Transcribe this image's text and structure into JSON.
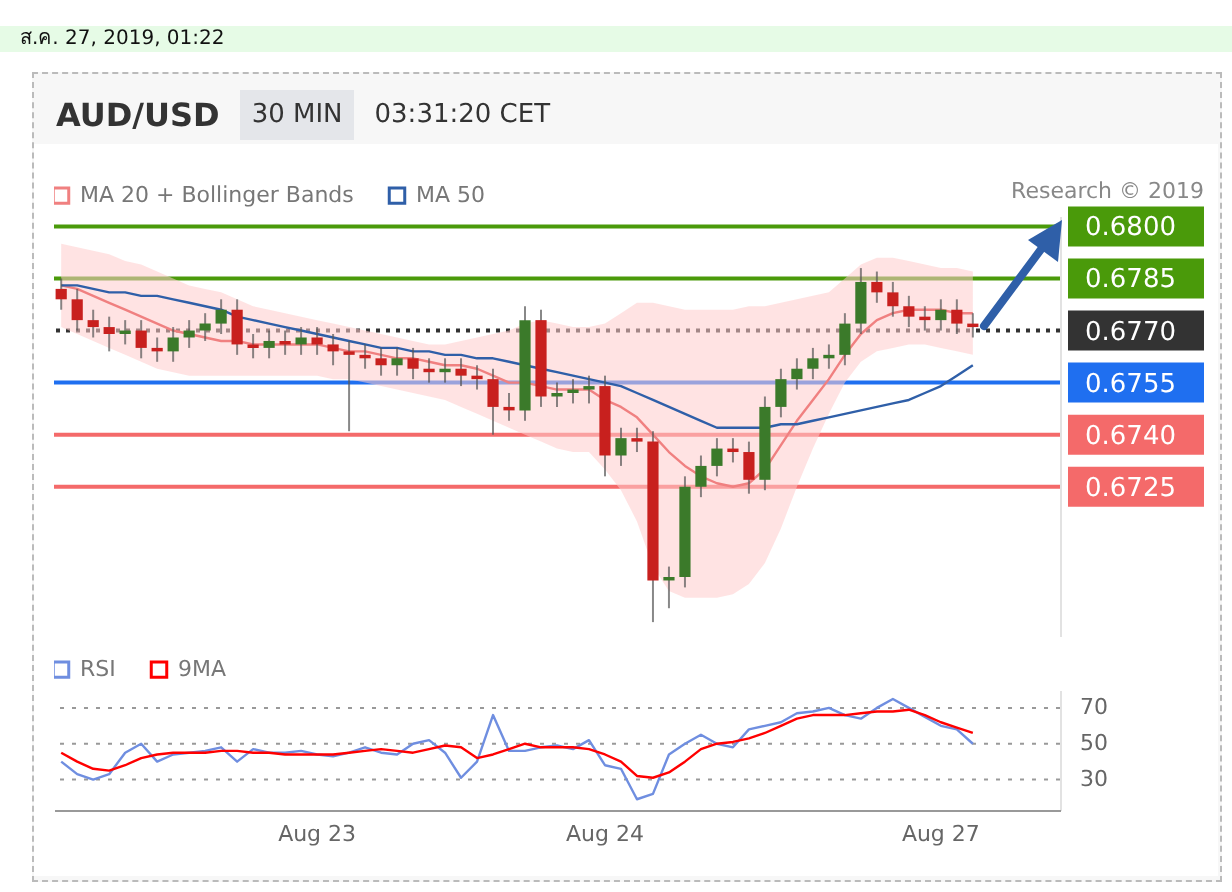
{
  "chart_data": [
    {
      "type": "candlestick",
      "title": "AUD/USD",
      "subtitle": "30 MIN",
      "annotations": [
        "03:31:20 CET",
        "ส.ค. 27, 2019, 01:22",
        "Research © 2019"
      ],
      "legend": "top left",
      "tick_labels": "y",
      "ylim": [
        0.6682,
        0.6803
      ],
      "yticks": [
        0.6725,
        {
          "value": 0.674,
          "label": "0.6740"
        },
        0.6755,
        {
          "value": 0.677,
          "label": "0.6770"
        },
        0.6785,
        {
          "value": 0.68,
          "label": "0.6800"
        }
      ],
      "categories": [
        null,
        null,
        null,
        null,
        null,
        null,
        null,
        null,
        null,
        null,
        null,
        null,
        null,
        null,
        null,
        null,
        null,
        null,
        null,
        null,
        null,
        null,
        null,
        null,
        null,
        null,
        null,
        null,
        null,
        null,
        null,
        null,
        null,
        null,
        null,
        null,
        null,
        null,
        null,
        null,
        null,
        null,
        null,
        null,
        null,
        null,
        null,
        null,
        null,
        null,
        null,
        null,
        null,
        null,
        null,
        null,
        null,
        null,
        null,
        null,
        null,
        null,
        null
      ],
      "ohlc": [
        [
          0.6782,
          0.6785,
          0.6776,
          0.6779
        ],
        [
          0.6779,
          0.6782,
          0.677,
          0.6773
        ],
        [
          0.6773,
          0.6776,
          0.6768,
          0.6771
        ],
        [
          0.6771,
          0.6774,
          0.6764,
          0.6769
        ],
        [
          0.6769,
          0.6773,
          0.6766,
          0.677
        ],
        [
          0.677,
          0.6773,
          0.6762,
          0.6765
        ],
        [
          0.6765,
          0.6768,
          0.6761,
          0.6764
        ],
        [
          0.6764,
          0.6771,
          0.6761,
          0.6768
        ],
        [
          0.6768,
          0.6773,
          0.6765,
          0.677
        ],
        [
          0.677,
          0.6775,
          0.6767,
          0.6772
        ],
        [
          0.6772,
          0.6779,
          0.6769,
          0.6776
        ],
        [
          0.6776,
          0.6779,
          0.6763,
          0.6766
        ],
        [
          0.6766,
          0.6769,
          0.6762,
          0.6765
        ],
        [
          0.6765,
          0.677,
          0.6762,
          0.6767
        ],
        [
          0.6767,
          0.677,
          0.6763,
          0.6766
        ],
        [
          0.6766,
          0.6771,
          0.6763,
          0.6768
        ],
        [
          0.6768,
          0.6771,
          0.6763,
          0.6766
        ],
        [
          0.6766,
          0.6769,
          0.676,
          0.6764
        ],
        [
          0.6764,
          0.6767,
          0.6741,
          0.6763
        ],
        [
          0.6763,
          0.6766,
          0.6759,
          0.6762
        ],
        [
          0.6762,
          0.6765,
          0.6757,
          0.676
        ],
        [
          0.676,
          0.6765,
          0.6757,
          0.6762
        ],
        [
          0.6762,
          0.6765,
          0.6756,
          0.6759
        ],
        [
          0.6759,
          0.6762,
          0.6755,
          0.6758
        ],
        [
          0.6758,
          0.6762,
          0.6755,
          0.6759
        ],
        [
          0.6759,
          0.6762,
          0.6754,
          0.6757
        ],
        [
          0.6757,
          0.676,
          0.6753,
          0.6756
        ],
        [
          0.6756,
          0.6759,
          0.674,
          0.6748
        ],
        [
          0.6748,
          0.6752,
          0.6744,
          0.6747
        ],
        [
          0.6747,
          0.6777,
          0.6744,
          0.6773
        ],
        [
          0.6773,
          0.6776,
          0.6748,
          0.6751
        ],
        [
          0.6751,
          0.6755,
          0.6748,
          0.6752
        ],
        [
          0.6752,
          0.6756,
          0.6749,
          0.6753
        ],
        [
          0.6753,
          0.6757,
          0.6749,
          0.6754
        ],
        [
          0.6754,
          0.6757,
          0.6728,
          0.6734
        ],
        [
          0.6734,
          0.6742,
          0.6731,
          0.6739
        ],
        [
          0.6739,
          0.6742,
          0.6735,
          0.6738
        ],
        [
          0.6738,
          0.6741,
          0.6686,
          0.6698
        ],
        [
          0.6698,
          0.6702,
          0.669,
          0.6699
        ],
        [
          0.6699,
          0.6728,
          0.6696,
          0.6725
        ],
        [
          0.6725,
          0.6734,
          0.6722,
          0.6731
        ],
        [
          0.6731,
          0.6739,
          0.6728,
          0.6736
        ],
        [
          0.6736,
          0.6739,
          0.6732,
          0.6735
        ],
        [
          0.6735,
          0.6738,
          0.6723,
          0.6727
        ],
        [
          0.6727,
          0.6751,
          0.6724,
          0.6748
        ],
        [
          0.6748,
          0.6759,
          0.6745,
          0.6756
        ],
        [
          0.6756,
          0.6762,
          0.6753,
          0.6759
        ],
        [
          0.6759,
          0.6765,
          0.6756,
          0.6762
        ],
        [
          0.6762,
          0.6766,
          0.6759,
          0.6763
        ],
        [
          0.6763,
          0.6775,
          0.676,
          0.6772
        ],
        [
          0.6772,
          0.6788,
          0.6769,
          0.6784
        ],
        [
          0.6784,
          0.6787,
          0.6778,
          0.6781
        ],
        [
          0.6781,
          0.6784,
          0.6774,
          0.6777
        ],
        [
          0.6777,
          0.678,
          0.6771,
          0.6774
        ],
        [
          0.6774,
          0.6777,
          0.677,
          0.6773
        ],
        [
          0.6773,
          0.6779,
          0.677,
          0.6776
        ],
        [
          0.6776,
          0.6779,
          0.6769,
          0.6772
        ],
        [
          0.6772,
          0.6775,
          0.6768,
          0.6771
        ],
        null,
        null,
        null,
        null,
        null
      ],
      "series": [
        {
          "name": "MA 20 + Bollinger Bands",
          "type": "line",
          "color": "#f08080",
          "values": [
            0.6783,
            0.6782,
            0.678,
            0.6778,
            0.6776,
            0.6774,
            0.6772,
            0.677,
            0.6769,
            0.6768,
            0.6767,
            0.6767,
            0.6766,
            0.6766,
            0.6766,
            0.6766,
            0.6766,
            0.6765,
            0.6764,
            0.6764,
            0.6763,
            0.6762,
            0.6762,
            0.6761,
            0.676,
            0.676,
            0.6759,
            0.6757,
            0.6755,
            0.6755,
            0.6754,
            0.6753,
            0.6753,
            0.6753,
            0.675,
            0.6748,
            0.6745,
            0.674,
            0.6735,
            0.6731,
            0.6728,
            0.6726,
            0.6725,
            0.6726,
            0.673,
            0.6737,
            0.6744,
            0.675,
            0.6756,
            0.6763,
            0.6769,
            0.6773,
            0.6775,
            0.6776,
            0.6776,
            0.6776,
            0.6775,
            0.6775,
            null,
            null,
            null,
            null,
            null
          ],
          "upper": [
            0.6795,
            0.6794,
            0.6793,
            0.6792,
            0.679,
            0.6789,
            0.6787,
            0.6785,
            0.6783,
            0.6782,
            0.6781,
            0.6779,
            0.6777,
            0.6776,
            0.6775,
            0.6774,
            0.6773,
            0.6772,
            0.6771,
            0.677,
            0.6769,
            0.6768,
            0.6767,
            0.6766,
            0.6766,
            0.6767,
            0.6768,
            0.6769,
            0.677,
            0.6772,
            0.6773,
            0.6772,
            0.6771,
            0.6771,
            0.6772,
            0.6775,
            0.6778,
            0.6778,
            0.6777,
            0.6776,
            0.6776,
            0.6776,
            0.6776,
            0.6777,
            0.6777,
            0.6778,
            0.6779,
            0.678,
            0.6781,
            0.6785,
            0.6789,
            0.6791,
            0.6791,
            0.679,
            0.6789,
            0.6788,
            0.6788,
            0.6787,
            null,
            null,
            null,
            null,
            null
          ],
          "lower": [
            0.6771,
            0.6769,
            0.6767,
            0.6765,
            0.6763,
            0.6761,
            0.6759,
            0.6758,
            0.6757,
            0.6757,
            0.6757,
            0.6757,
            0.6757,
            0.6757,
            0.6757,
            0.6757,
            0.6757,
            0.6756,
            0.6756,
            0.6755,
            0.6754,
            0.6753,
            0.6752,
            0.6751,
            0.675,
            0.6748,
            0.6746,
            0.6744,
            0.6742,
            0.674,
            0.6738,
            0.6736,
            0.6735,
            0.6735,
            0.673,
            0.6724,
            0.6715,
            0.6702,
            0.6695,
            0.6693,
            0.6693,
            0.6693,
            0.6694,
            0.6697,
            0.6703,
            0.6713,
            0.6725,
            0.6736,
            0.6746,
            0.6755,
            0.6761,
            0.6764,
            0.6765,
            0.6766,
            0.6766,
            0.6765,
            0.6764,
            0.6763,
            null,
            null,
            null,
            null,
            null
          ]
        },
        {
          "name": "MA 50",
          "type": "line",
          "color": "#2f5fa8",
          "values": [
            0.6783,
            0.6783,
            0.6782,
            0.6781,
            0.6781,
            0.678,
            0.678,
            0.6779,
            0.6778,
            0.6777,
            0.6776,
            0.6774,
            0.6773,
            0.6772,
            0.6771,
            0.677,
            0.6769,
            0.6768,
            0.6767,
            0.6766,
            0.6765,
            0.6765,
            0.6764,
            0.6764,
            0.6763,
            0.6763,
            0.6762,
            0.6762,
            0.6761,
            0.676,
            0.6759,
            0.6758,
            0.6757,
            0.6756,
            0.6755,
            0.6754,
            0.6752,
            0.675,
            0.6748,
            0.6746,
            0.6744,
            0.6742,
            0.6742,
            0.6742,
            0.6742,
            0.6743,
            0.6743,
            0.6744,
            0.6745,
            0.6746,
            0.6747,
            0.6748,
            0.6749,
            0.675,
            0.6752,
            0.6754,
            0.6757,
            0.676,
            null,
            null,
            null,
            null,
            null
          ]
        }
      ],
      "ref_lines": [
        {
          "axis": "y",
          "value": 0.68,
          "color": "#4a9a0a"
        },
        {
          "axis": "y",
          "value": 0.6785,
          "color": "#4a9a0a"
        },
        {
          "axis": "y",
          "value": 0.677,
          "color": "#333333",
          "line_style": "dotted"
        },
        {
          "axis": "y",
          "value": 0.6755,
          "color": "#1f6ff0"
        },
        {
          "axis": "y",
          "value": 0.674,
          "color": "#f46a6a"
        },
        {
          "axis": "y",
          "value": 0.6725,
          "color": "#f46a6a"
        }
      ]
    },
    {
      "type": "line",
      "legend": "top left",
      "grid": "y",
      "line_style": "solid",
      "categories": [
        null,
        null,
        null,
        null,
        null,
        null,
        null,
        null,
        null,
        null,
        null,
        null,
        null,
        null,
        null,
        null,
        "Aug 23",
        null,
        null,
        null,
        null,
        null,
        null,
        null,
        null,
        null,
        null,
        null,
        null,
        null,
        null,
        null,
        null,
        null,
        "Aug 24",
        null,
        null,
        null,
        null,
        null,
        null,
        null,
        null,
        null,
        null,
        null,
        null,
        null,
        null,
        null,
        null,
        null,
        null,
        null,
        null,
        "Aug 27",
        null,
        null,
        null,
        null,
        null,
        null,
        null
      ],
      "series": [
        {
          "name": "RSI",
          "color": "#6f8ee0",
          "values": [
            40,
            33,
            30,
            33,
            45,
            50,
            40,
            44,
            45,
            46,
            48,
            40,
            47,
            45,
            45,
            46,
            44,
            43,
            45,
            48,
            45,
            44,
            50,
            52,
            45,
            31,
            40,
            66,
            46,
            46,
            48,
            49,
            47,
            52,
            38,
            36,
            19,
            22,
            44,
            50,
            55,
            50,
            48,
            58,
            60,
            62,
            67,
            68,
            70,
            66,
            64,
            70,
            75,
            70,
            65,
            60,
            58,
            50,
            null,
            null,
            null,
            null,
            null
          ]
        },
        {
          "name": "9MA",
          "color": "#ff0000",
          "values": [
            45,
            40,
            36,
            35,
            38,
            42,
            44,
            45,
            45,
            45,
            46,
            46,
            45,
            45,
            44,
            44,
            44,
            44,
            45,
            46,
            47,
            46,
            45,
            47,
            49,
            48,
            42,
            44,
            47,
            50,
            48,
            48,
            48,
            47,
            44,
            40,
            32,
            31,
            34,
            40,
            47,
            50,
            51,
            53,
            56,
            60,
            64,
            66,
            66,
            66,
            67,
            68,
            68,
            69,
            66,
            62,
            59,
            56,
            null,
            null,
            null,
            null,
            null
          ]
        }
      ],
      "ylim": [
        13,
        80
      ],
      "yticks": [
        30,
        50,
        70
      ]
    }
  ]
}
